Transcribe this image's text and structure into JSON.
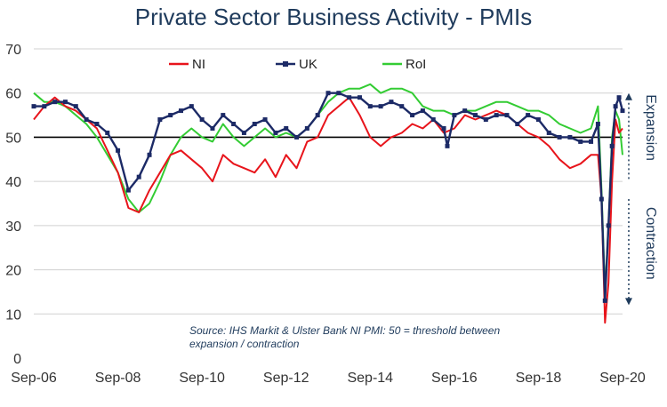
{
  "chart_data": {
    "type": "line",
    "title": "Private Sector Business Activity - PMIs",
    "xlabel": "",
    "ylabel": "",
    "ylim": [
      0,
      70
    ],
    "yticks": [
      "0",
      "10",
      "20",
      "30",
      "40",
      "50",
      "60",
      "70"
    ],
    "xlim": [
      "2006-09",
      "2020-09"
    ],
    "xticks": [
      "Sep-06",
      "Sep-08",
      "Sep-10",
      "Sep-12",
      "Sep-14",
      "Sep-16",
      "Sep-18",
      "Sep-20"
    ],
    "reference_line": 50,
    "grid": "horizontal",
    "legend_position": "top",
    "annotation": "Source: IHS Markit & Ulster Bank NI PMI: 50 = threshold between expansion / contraction",
    "side_labels": {
      "upper": "Expansion",
      "lower": "Contraction"
    },
    "series": [
      {
        "name": "NI",
        "color": "#e8141b",
        "marker": "none",
        "points": [
          [
            "2006-09",
            54
          ],
          [
            "2006-12",
            57
          ],
          [
            "2007-03",
            59
          ],
          [
            "2007-06",
            57
          ],
          [
            "2007-09",
            56
          ],
          [
            "2007-12",
            54
          ],
          [
            "2008-03",
            52
          ],
          [
            "2008-06",
            47
          ],
          [
            "2008-09",
            42
          ],
          [
            "2008-12",
            34
          ],
          [
            "2009-03",
            33
          ],
          [
            "2009-06",
            38
          ],
          [
            "2009-09",
            42
          ],
          [
            "2009-12",
            46
          ],
          [
            "2010-03",
            47
          ],
          [
            "2010-06",
            45
          ],
          [
            "2010-09",
            43
          ],
          [
            "2010-12",
            40
          ],
          [
            "2011-03",
            46
          ],
          [
            "2011-06",
            44
          ],
          [
            "2011-09",
            43
          ],
          [
            "2011-12",
            42
          ],
          [
            "2012-03",
            45
          ],
          [
            "2012-06",
            41
          ],
          [
            "2012-09",
            46
          ],
          [
            "2012-12",
            43
          ],
          [
            "2013-03",
            49
          ],
          [
            "2013-06",
            50
          ],
          [
            "2013-09",
            55
          ],
          [
            "2013-12",
            57
          ],
          [
            "2014-03",
            59
          ],
          [
            "2014-06",
            55
          ],
          [
            "2014-09",
            50
          ],
          [
            "2014-12",
            48
          ],
          [
            "2015-03",
            50
          ],
          [
            "2015-06",
            51
          ],
          [
            "2015-09",
            53
          ],
          [
            "2015-12",
            52
          ],
          [
            "2016-03",
            54
          ],
          [
            "2016-06",
            51
          ],
          [
            "2016-09",
            52
          ],
          [
            "2016-12",
            55
          ],
          [
            "2017-03",
            54
          ],
          [
            "2017-06",
            55
          ],
          [
            "2017-09",
            56
          ],
          [
            "2017-12",
            55
          ],
          [
            "2018-03",
            53
          ],
          [
            "2018-06",
            51
          ],
          [
            "2018-09",
            50
          ],
          [
            "2018-12",
            48
          ],
          [
            "2019-03",
            45
          ],
          [
            "2019-06",
            43
          ],
          [
            "2019-09",
            44
          ],
          [
            "2019-12",
            46
          ],
          [
            "2020-02",
            46
          ],
          [
            "2020-03",
            36
          ],
          [
            "2020-04",
            8
          ],
          [
            "2020-05",
            17
          ],
          [
            "2020-06",
            40
          ],
          [
            "2020-07",
            54
          ],
          [
            "2020-08",
            51
          ],
          [
            "2020-09",
            52
          ]
        ]
      },
      {
        "name": "UK",
        "color": "#1c2a66",
        "marker": "square",
        "points": [
          [
            "2006-09",
            57
          ],
          [
            "2006-12",
            57
          ],
          [
            "2007-03",
            58
          ],
          [
            "2007-06",
            58
          ],
          [
            "2007-09",
            57
          ],
          [
            "2007-12",
            54
          ],
          [
            "2008-03",
            53
          ],
          [
            "2008-06",
            51
          ],
          [
            "2008-09",
            47
          ],
          [
            "2008-12",
            38
          ],
          [
            "2009-03",
            41
          ],
          [
            "2009-06",
            46
          ],
          [
            "2009-09",
            54
          ],
          [
            "2009-12",
            55
          ],
          [
            "2010-03",
            56
          ],
          [
            "2010-06",
            57
          ],
          [
            "2010-09",
            54
          ],
          [
            "2010-12",
            52
          ],
          [
            "2011-03",
            55
          ],
          [
            "2011-06",
            53
          ],
          [
            "2011-09",
            51
          ],
          [
            "2011-12",
            53
          ],
          [
            "2012-03",
            54
          ],
          [
            "2012-06",
            51
          ],
          [
            "2012-09",
            52
          ],
          [
            "2012-12",
            50
          ],
          [
            "2013-03",
            52
          ],
          [
            "2013-06",
            55
          ],
          [
            "2013-09",
            60
          ],
          [
            "2013-12",
            60
          ],
          [
            "2014-03",
            59
          ],
          [
            "2014-06",
            59
          ],
          [
            "2014-09",
            57
          ],
          [
            "2014-12",
            57
          ],
          [
            "2015-03",
            58
          ],
          [
            "2015-06",
            57
          ],
          [
            "2015-09",
            55
          ],
          [
            "2015-12",
            56
          ],
          [
            "2016-03",
            54
          ],
          [
            "2016-06",
            52
          ],
          [
            "2016-07",
            48
          ],
          [
            "2016-09",
            55
          ],
          [
            "2016-12",
            56
          ],
          [
            "2017-03",
            55
          ],
          [
            "2017-06",
            54
          ],
          [
            "2017-09",
            55
          ],
          [
            "2017-12",
            55
          ],
          [
            "2018-03",
            53
          ],
          [
            "2018-06",
            55
          ],
          [
            "2018-09",
            54
          ],
          [
            "2018-12",
            51
          ],
          [
            "2019-03",
            50
          ],
          [
            "2019-06",
            50
          ],
          [
            "2019-09",
            49
          ],
          [
            "2019-12",
            49
          ],
          [
            "2020-02",
            53
          ],
          [
            "2020-03",
            36
          ],
          [
            "2020-04",
            13
          ],
          [
            "2020-05",
            30
          ],
          [
            "2020-06",
            48
          ],
          [
            "2020-07",
            57
          ],
          [
            "2020-08",
            59
          ],
          [
            "2020-09",
            56
          ]
        ]
      },
      {
        "name": "RoI",
        "color": "#33cc33",
        "marker": "none",
        "points": [
          [
            "2006-09",
            60
          ],
          [
            "2006-12",
            58
          ],
          [
            "2007-03",
            58
          ],
          [
            "2007-06",
            57
          ],
          [
            "2007-09",
            55
          ],
          [
            "2007-12",
            53
          ],
          [
            "2008-03",
            50
          ],
          [
            "2008-06",
            46
          ],
          [
            "2008-09",
            42
          ],
          [
            "2008-12",
            36
          ],
          [
            "2009-03",
            33
          ],
          [
            "2009-06",
            35
          ],
          [
            "2009-09",
            40
          ],
          [
            "2009-12",
            46
          ],
          [
            "2010-03",
            50
          ],
          [
            "2010-06",
            52
          ],
          [
            "2010-09",
            50
          ],
          [
            "2010-12",
            49
          ],
          [
            "2011-03",
            53
          ],
          [
            "2011-06",
            50
          ],
          [
            "2011-09",
            48
          ],
          [
            "2011-12",
            50
          ],
          [
            "2012-03",
            52
          ],
          [
            "2012-06",
            50
          ],
          [
            "2012-09",
            51
          ],
          [
            "2012-12",
            50
          ],
          [
            "2013-03",
            52
          ],
          [
            "2013-06",
            55
          ],
          [
            "2013-09",
            58
          ],
          [
            "2013-12",
            60
          ],
          [
            "2014-03",
            61
          ],
          [
            "2014-06",
            61
          ],
          [
            "2014-09",
            62
          ],
          [
            "2014-12",
            60
          ],
          [
            "2015-03",
            61
          ],
          [
            "2015-06",
            61
          ],
          [
            "2015-09",
            60
          ],
          [
            "2015-12",
            57
          ],
          [
            "2016-03",
            56
          ],
          [
            "2016-06",
            56
          ],
          [
            "2016-09",
            55
          ],
          [
            "2016-12",
            56
          ],
          [
            "2017-03",
            56
          ],
          [
            "2017-06",
            57
          ],
          [
            "2017-09",
            58
          ],
          [
            "2017-12",
            58
          ],
          [
            "2018-03",
            57
          ],
          [
            "2018-06",
            56
          ],
          [
            "2018-09",
            56
          ],
          [
            "2018-12",
            55
          ],
          [
            "2019-03",
            53
          ],
          [
            "2019-06",
            52
          ],
          [
            "2019-09",
            51
          ],
          [
            "2019-12",
            52
          ],
          [
            "2020-02",
            57
          ],
          [
            "2020-03",
            38
          ],
          [
            "2020-04",
            15
          ],
          [
            "2020-05",
            30
          ],
          [
            "2020-06",
            50
          ],
          [
            "2020-07",
            56
          ],
          [
            "2020-08",
            54
          ],
          [
            "2020-09",
            46
          ]
        ]
      }
    ]
  }
}
